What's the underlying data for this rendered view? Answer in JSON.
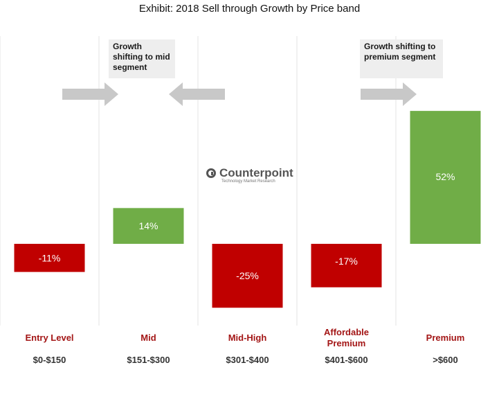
{
  "title": "Exhibit: 2018 Sell through Growth by Price band",
  "callouts": {
    "mid": "Growth shifting to mid segment",
    "premium": "Growth shifting to premium segment"
  },
  "watermark": {
    "name": "Counterpoint",
    "tagline": "Technology Market Research"
  },
  "colors": {
    "positive": "#70ad47",
    "negative": "#c00000",
    "category_label": "#a31515",
    "arrow": "#c8c8c8",
    "callout_bg": "#eeeeee"
  },
  "chart_data": {
    "type": "bar",
    "title": "Exhibit: 2018 Sell through Growth by Price band",
    "categories": [
      "Entry Level",
      "Mid",
      "Mid-High",
      "Affordable Premium",
      "Premium"
    ],
    "price_ranges": [
      "$0-$150",
      "$151-$300",
      "$301-$400",
      "$401-$600",
      ">$600"
    ],
    "values": [
      -11,
      14,
      -25,
      -17,
      52
    ],
    "data_labels": [
      "-11%",
      "14%",
      "-25%",
      "-17%",
      "52%"
    ],
    "ylim": [
      -30,
      55
    ],
    "grid": "vertical separators between categories",
    "legend": "none",
    "annotations": [
      {
        "text": "Growth shifting to mid segment",
        "direction": "toward Mid"
      },
      {
        "text": "Growth shifting to premium segment",
        "direction": "toward Premium"
      }
    ]
  }
}
